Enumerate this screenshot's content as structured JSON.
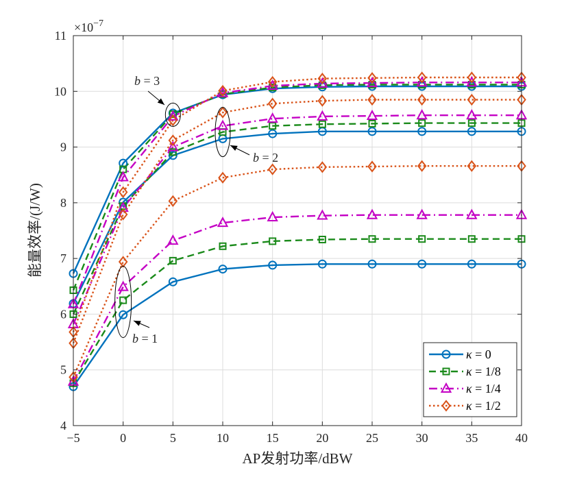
{
  "chart_data": {
    "type": "line",
    "xlabel": "AP发射功率/dBW",
    "ylabel": "能量效率/(J/W)",
    "y_exponent_label": "×10",
    "y_exponent_power": "−7",
    "xlim": [
      -5,
      40
    ],
    "ylim": [
      4,
      11
    ],
    "grid": true,
    "legend_position": "bottom-right",
    "x_ticks": [
      "−5",
      "0",
      "5",
      "10",
      "15",
      "20",
      "25",
      "30",
      "35",
      "40"
    ],
    "y_ticks": [
      "4",
      "5",
      "6",
      "7",
      "8",
      "9",
      "10",
      "11"
    ],
    "x": [
      -5,
      0,
      5,
      10,
      15,
      20,
      25,
      30,
      35,
      40
    ],
    "legend": [
      {
        "kappa": "κ",
        "label": " = 0",
        "color": "#0072BD",
        "marker": "circle",
        "dash": "solid"
      },
      {
        "kappa": "κ",
        "label": " = 1/8",
        "color": "#1A8A1A",
        "marker": "square",
        "dash": "dash"
      },
      {
        "kappa": "κ",
        "label": " = 1/4",
        "color": "#C400C4",
        "marker": "triangle",
        "dash": "dashdot"
      },
      {
        "kappa": "κ",
        "label": " = 1/2",
        "color": "#D95319",
        "marker": "diamond",
        "dash": "dot"
      }
    ],
    "series": [
      {
        "kappa_index": 0,
        "b": 1,
        "values": [
          4.7,
          5.99,
          6.58,
          6.81,
          6.88,
          6.9,
          6.9,
          6.9,
          6.9,
          6.9
        ]
      },
      {
        "kappa_index": 1,
        "b": 1,
        "values": [
          4.76,
          6.25,
          6.96,
          7.22,
          7.31,
          7.34,
          7.35,
          7.35,
          7.35,
          7.35
        ]
      },
      {
        "kappa_index": 2,
        "b": 1,
        "values": [
          4.79,
          6.49,
          7.32,
          7.64,
          7.74,
          7.77,
          7.78,
          7.78,
          7.78,
          7.78
        ]
      },
      {
        "kappa_index": 3,
        "b": 1,
        "values": [
          4.87,
          6.94,
          8.03,
          8.45,
          8.6,
          8.64,
          8.65,
          8.66,
          8.66,
          8.66
        ]
      },
      {
        "kappa_index": 0,
        "b": 2,
        "values": [
          6.19,
          8.01,
          8.85,
          9.15,
          9.24,
          9.28,
          9.28,
          9.28,
          9.28,
          9.28
        ]
      },
      {
        "kappa_index": 1,
        "b": 2,
        "values": [
          6.0,
          7.94,
          8.91,
          9.27,
          9.38,
          9.41,
          9.42,
          9.43,
          9.43,
          9.43
        ]
      },
      {
        "kappa_index": 2,
        "b": 2,
        "values": [
          5.82,
          7.91,
          9.0,
          9.38,
          9.51,
          9.55,
          9.56,
          9.57,
          9.57,
          9.57
        ]
      },
      {
        "kappa_index": 3,
        "b": 2,
        "values": [
          5.48,
          7.79,
          9.12,
          9.62,
          9.78,
          9.83,
          9.85,
          9.85,
          9.85,
          9.85
        ]
      },
      {
        "kappa_index": 0,
        "b": 3,
        "values": [
          6.73,
          8.71,
          9.61,
          9.94,
          10.05,
          10.08,
          10.09,
          10.09,
          10.09,
          10.09
        ]
      },
      {
        "kappa_index": 1,
        "b": 3,
        "values": [
          6.43,
          8.6,
          9.59,
          9.95,
          10.07,
          10.11,
          10.12,
          10.12,
          10.12,
          10.12
        ]
      },
      {
        "kappa_index": 2,
        "b": 3,
        "values": [
          6.18,
          8.46,
          9.55,
          9.97,
          10.1,
          10.14,
          10.15,
          10.16,
          10.16,
          10.16
        ]
      },
      {
        "kappa_index": 3,
        "b": 3,
        "values": [
          5.68,
          8.19,
          9.48,
          10.01,
          10.17,
          10.23,
          10.24,
          10.25,
          10.25,
          10.25
        ]
      }
    ],
    "annotations": [
      {
        "text_italic": "b",
        "text_rest": " = 1",
        "x": 0,
        "y": 6.22
      },
      {
        "text_italic": "b",
        "text_rest": " = 2",
        "x": 10,
        "y": 9.27
      },
      {
        "text_italic": "b",
        "text_rest": " = 3",
        "x": 5,
        "y": 9.58
      }
    ]
  }
}
